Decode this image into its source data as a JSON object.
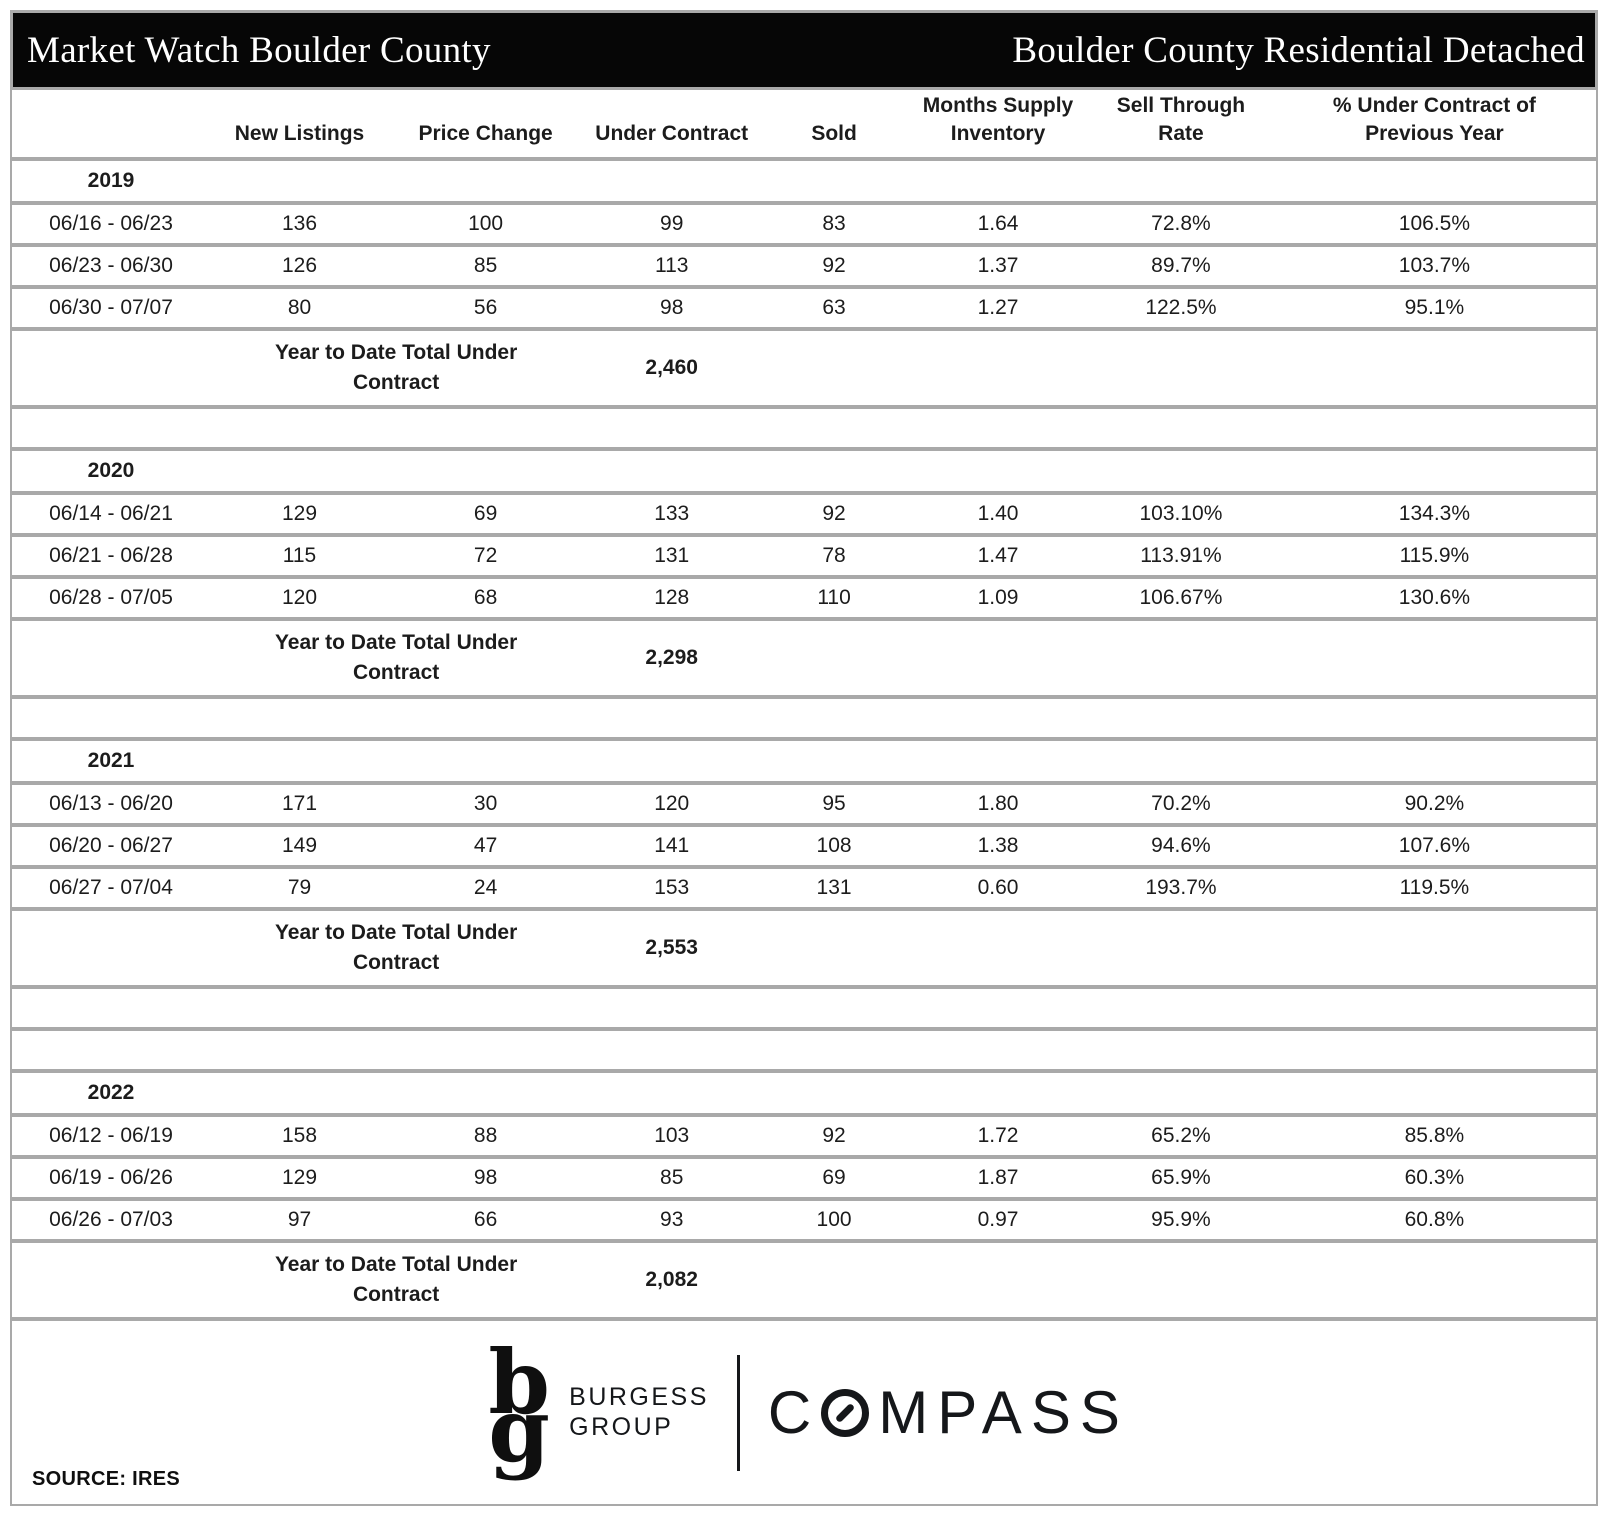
{
  "header": {
    "title_left": "Market Watch Boulder County",
    "title_right": "Boulder County Residential Detached"
  },
  "columns": [
    {
      "key": "period",
      "label": ""
    },
    {
      "key": "new_listings",
      "label": "New Listings"
    },
    {
      "key": "price_change",
      "label": "Price Change"
    },
    {
      "key": "under_contract",
      "label": "Under Contract"
    },
    {
      "key": "sold",
      "label": "Sold"
    },
    {
      "key": "months_supply_inventory",
      "label": "Months Supply\nInventory"
    },
    {
      "key": "sell_through_rate",
      "label": "Sell Through\nRate"
    },
    {
      "key": "pct_under_contract_prev_year",
      "label": "% Under Contract of\nPrevious Year"
    }
  ],
  "total_label": "Year to Date Total Under\nContract",
  "sections": [
    {
      "year": "2019",
      "rows": [
        {
          "cells": [
            "06/16 - 06/23",
            "136",
            "100",
            "99",
            "83",
            "1.64",
            "72.8%",
            "106.5%"
          ]
        },
        {
          "cells": [
            "06/23 - 06/30",
            "126",
            "85",
            "113",
            "92",
            "1.37",
            "89.7%",
            "103.7%"
          ]
        },
        {
          "cells": [
            "06/30 - 07/07",
            "80",
            "56",
            "98",
            "63",
            "1.27",
            "122.5%",
            "95.1%"
          ]
        }
      ],
      "total_under_contract": "2,460",
      "blank_rows_after": 1
    },
    {
      "year": "2020",
      "rows": [
        {
          "cells": [
            "06/14 - 06/21",
            "129",
            "69",
            "133",
            "92",
            "1.40",
            "103.10%",
            "134.3%"
          ]
        },
        {
          "cells": [
            "06/21 - 06/28",
            "115",
            "72",
            "131",
            "78",
            "1.47",
            "113.91%",
            "115.9%"
          ]
        },
        {
          "cells": [
            "06/28 - 07/05",
            "120",
            "68",
            "128",
            "110",
            "1.09",
            "106.67%",
            "130.6%"
          ]
        }
      ],
      "total_under_contract": "2,298",
      "blank_rows_after": 1
    },
    {
      "year": "2021",
      "rows": [
        {
          "cells": [
            "06/13 - 06/20",
            "171",
            "30",
            "120",
            "95",
            "1.80",
            "70.2%",
            "90.2%"
          ]
        },
        {
          "cells": [
            "06/20 - 06/27",
            "149",
            "47",
            "141",
            "108",
            "1.38",
            "94.6%",
            "107.6%"
          ]
        },
        {
          "cells": [
            "06/27 - 07/04",
            "79",
            "24",
            "153",
            "131",
            "0.60",
            "193.7%",
            "119.5%"
          ]
        }
      ],
      "total_under_contract": "2,553",
      "blank_rows_after": 2
    },
    {
      "year": "2022",
      "rows": [
        {
          "cells": [
            "06/12 - 06/19",
            "158",
            "88",
            "103",
            "92",
            "1.72",
            "65.2%",
            "85.8%"
          ]
        },
        {
          "cells": [
            "06/19 - 06/26",
            "129",
            "98",
            "85",
            "69",
            "1.87",
            "65.9%",
            "60.3%"
          ]
        },
        {
          "cells": [
            "06/26 - 07/03",
            "97",
            "66",
            "93",
            "100",
            "0.97",
            "95.9%",
            "60.8%"
          ]
        }
      ],
      "total_under_contract": "2,082",
      "blank_rows_after": 0
    }
  ],
  "footer": {
    "monogram_top": "b",
    "monogram_bottom": "g",
    "burgess_line1": "BURGESS",
    "burgess_line2": "GROUP",
    "compass_prefix": "C",
    "compass_suffix": "MPASS",
    "source": "SOURCE: IRES"
  }
}
